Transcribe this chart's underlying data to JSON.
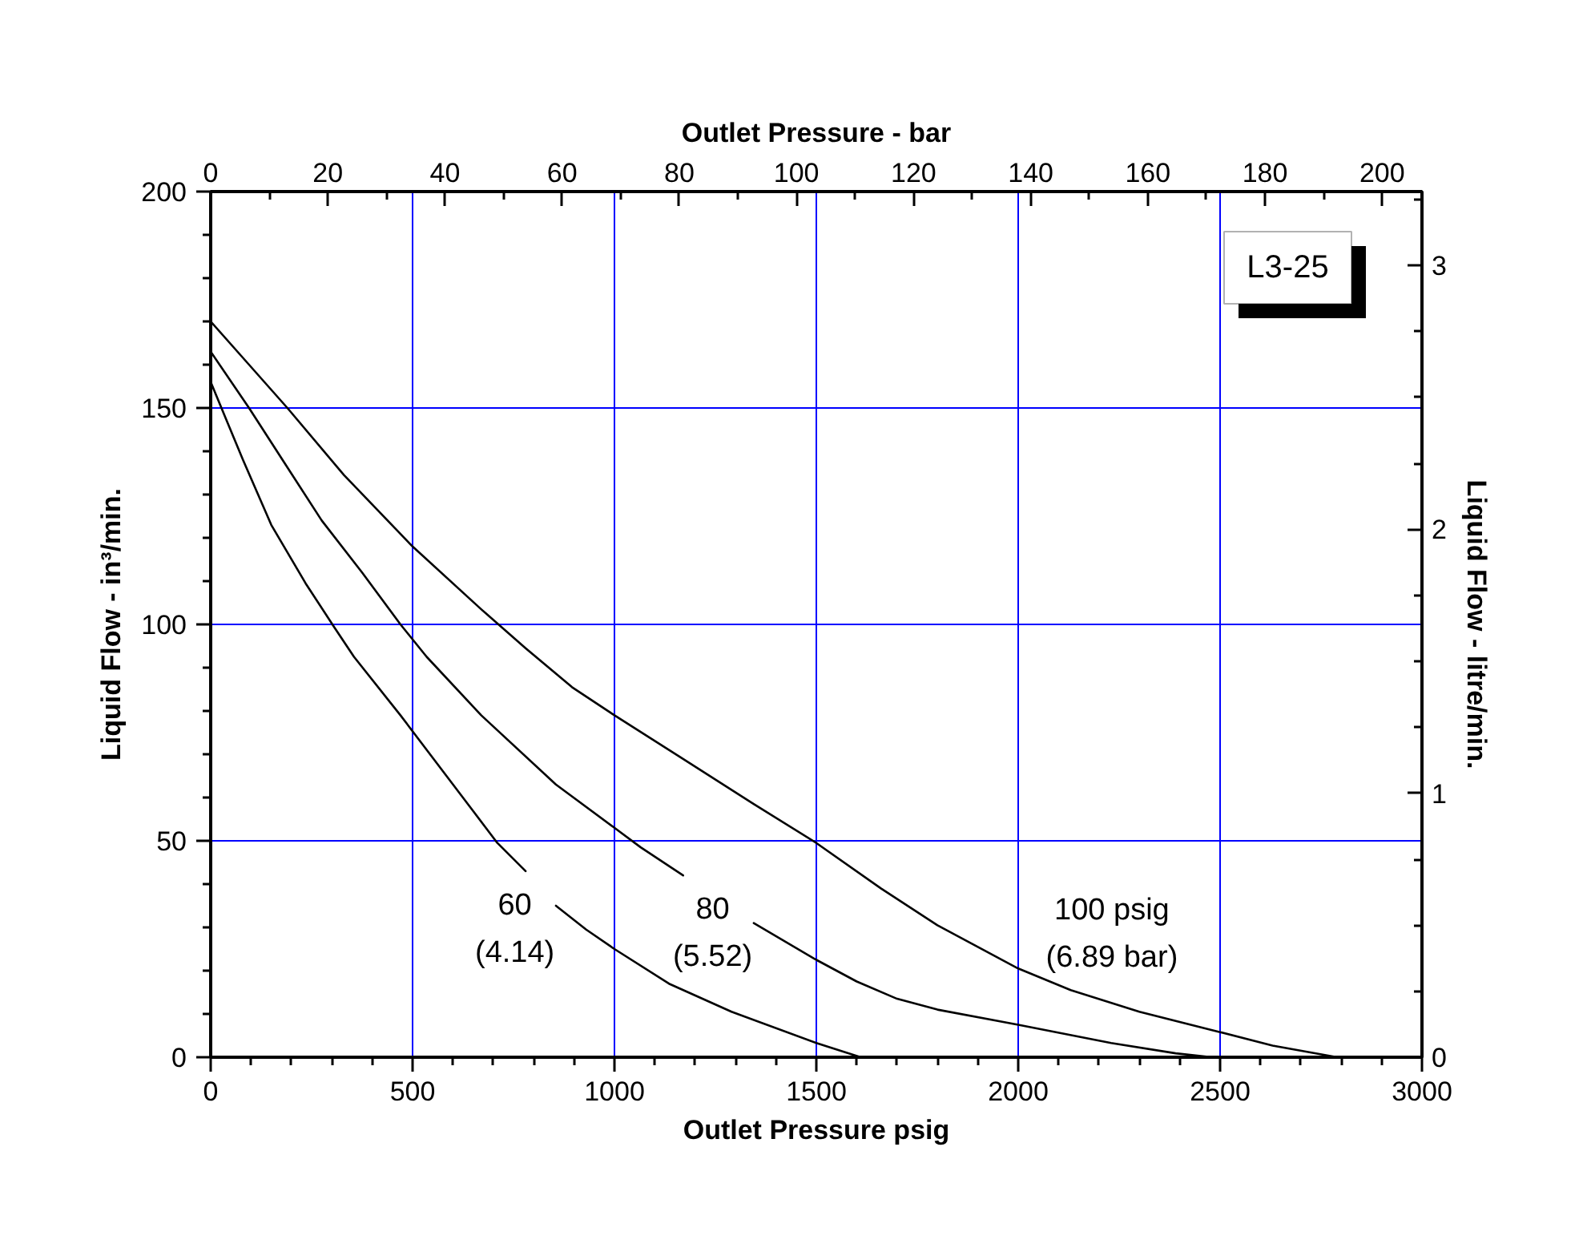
{
  "chart_data": {
    "type": "line",
    "xlabel": "Outlet Pressure psig",
    "x2label": "Outlet Pressure - bar",
    "ylabel": "Liquid Flow - in³/min.",
    "y2label": "Liquid Flow - litre/min.",
    "xlim": [
      0,
      3000
    ],
    "xticks": [
      0,
      500,
      1000,
      1500,
      2000,
      2500,
      3000
    ],
    "ylim": [
      0,
      200
    ],
    "yticks": [
      0,
      50,
      100,
      150,
      200
    ],
    "x2lim": [
      0,
      206.8
    ],
    "x2ticks": [
      0,
      20,
      40,
      60,
      80,
      100,
      120,
      140,
      160,
      180,
      200
    ],
    "y2lim": [
      0,
      3.28
    ],
    "y2ticks": [
      0,
      1,
      2,
      3
    ],
    "grid": true,
    "series": [
      {
        "name": "60\n(4.14)",
        "color": "#000000",
        "x": [
          0,
          40,
          80,
          150,
          235,
          305,
          355,
          470,
          645,
          710,
          780,
          820,
          855,
          930,
          1000,
          1135,
          1290,
          1500,
          1610
        ],
        "values": [
          156,
          147,
          138,
          123,
          109.5,
          99.5,
          92.5,
          79,
          57.5,
          49.5,
          43,
          null,
          35,
          29.5,
          25,
          17,
          10.5,
          3.3,
          0
        ]
      },
      {
        "name": "80\n(5.52)",
        "color": "#000000",
        "x": [
          0,
          95,
          185,
          275,
          375,
          470,
          535,
          670,
          855,
          1000,
          1065,
          1170,
          1260,
          1345,
          1500,
          1600,
          1700,
          1800,
          2000,
          2230,
          2390,
          2480
        ],
        "values": [
          163,
          150,
          137,
          124,
          112,
          100,
          92.5,
          79,
          63,
          53,
          48.5,
          42,
          null,
          31,
          22.5,
          17.5,
          13.5,
          11,
          7.5,
          3.3,
          0.9,
          0
        ]
      },
      {
        "name": "100 psig\n(6.89 bar)",
        "color": "#000000",
        "x": [
          0,
          95,
          190,
          330,
          500,
          670,
          780,
          895,
          1000,
          1160,
          1345,
          1500,
          1660,
          1800,
          2000,
          2130,
          2300,
          2500,
          2630,
          2790
        ],
        "values": [
          170,
          160,
          150,
          134.5,
          118,
          103.5,
          94.5,
          85.5,
          79,
          69.5,
          58.5,
          49.5,
          39,
          30.5,
          20.5,
          15.5,
          10.5,
          5.8,
          2.7,
          0
        ]
      }
    ],
    "annotations": [
      "L3-25"
    ]
  }
}
